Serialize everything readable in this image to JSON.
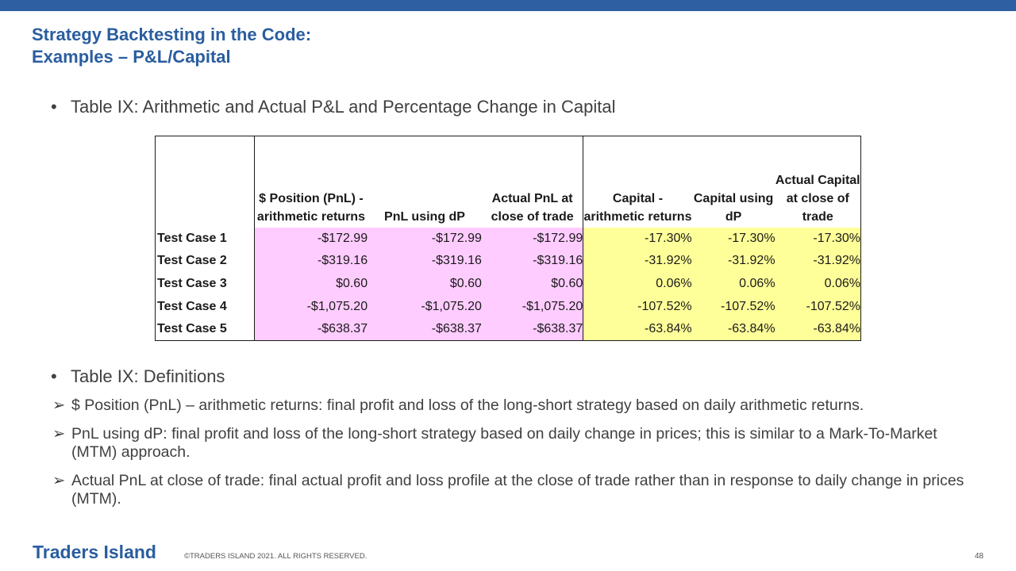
{
  "title": {
    "line1": "Strategy Backtesting in the Code:",
    "line2": "Examples – P&L/Capital"
  },
  "bullets": {
    "table_caption": "Table IX: Arithmetic and Actual P&L and Percentage Change in Capital",
    "definitions_caption": "Table IX: Definitions",
    "bullet_glyph": "•"
  },
  "table": {
    "headers": [
      "",
      "$ Position (PnL) - arithmetic returns",
      "PnL using dP",
      "Actual PnL at close of trade",
      "Capital - arithmetic returns",
      "Capital using dP",
      "Actual Capital at close of trade"
    ],
    "rows": [
      [
        "Test Case 1",
        "-$172.99",
        "-$172.99",
        "-$172.99",
        "-17.30%",
        "-17.30%",
        "-17.30%"
      ],
      [
        "Test Case 2",
        "-$319.16",
        "-$319.16",
        "-$319.16",
        "-31.92%",
        "-31.92%",
        "-31.92%"
      ],
      [
        "Test Case 3",
        "$0.60",
        "$0.60",
        "$0.60",
        "0.06%",
        "0.06%",
        "0.06%"
      ],
      [
        "Test Case 4",
        "-$1,075.20",
        "-$1,075.20",
        "-$1,075.20",
        "-107.52%",
        "-107.52%",
        "-107.52%"
      ],
      [
        "Test Case 5",
        "-$638.37",
        "-$638.37",
        "-$638.37",
        "-63.84%",
        "-63.84%",
        "-63.84%"
      ]
    ],
    "colors": {
      "pnl_fill": "#ffccff",
      "capital_fill": "#ffff99"
    }
  },
  "definitions": {
    "arrow_glyph": "➢",
    "items": [
      "$ Position (PnL) – arithmetic returns: final profit and loss of the long-short strategy based on daily arithmetic returns.",
      "PnL using dP: final profit and loss of the long-short strategy based on daily change in prices; this is similar to a Mark-To-Market (MTM)  approach.",
      "Actual PnL at close of trade: final actual profit and loss profile at the close of trade rather than in response to daily change in prices (MTM)."
    ]
  },
  "footer": {
    "logo": "Traders Island",
    "copyright": "©TRADERS ISLAND 2021. ALL RIGHTS RESERVED.",
    "page_number": "48"
  },
  "colors": {
    "accent": "#2e5fa3",
    "title": "#2a5d9f"
  }
}
